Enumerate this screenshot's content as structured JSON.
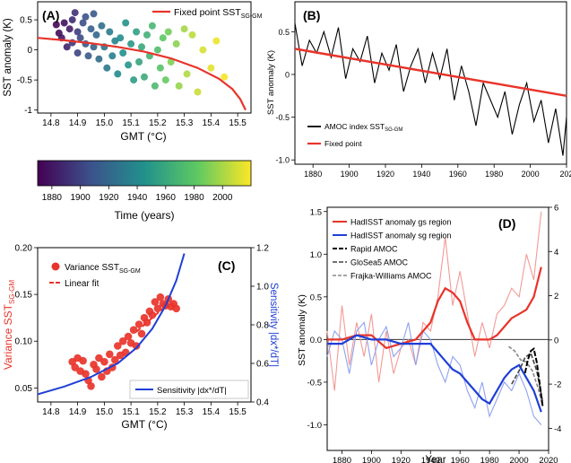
{
  "panels": {
    "A": {
      "letter": "(A)",
      "xlabel": "GMT (°C)",
      "ylabel": "SST anomaly (K)",
      "xticks": [
        "14.8",
        "14.9",
        "15.0",
        "15.1",
        "15.2",
        "15.3",
        "15.4",
        "15.5"
      ],
      "yticks": [
        "0.5",
        "0",
        "-0.5",
        "-1"
      ],
      "legend": "Fixed point SST",
      "legend_sub": "SG-GM"
    },
    "B": {
      "letter": "(B)",
      "ylabel": "SST anomaly (K)",
      "xticks": [
        "1880",
        "1900",
        "1920",
        "1940",
        "1960",
        "1980",
        "2000",
        "202"
      ],
      "yticks": [
        "0.5",
        "0",
        "-0.5",
        "-1.0"
      ],
      "legend_series": "AMOC index SST",
      "legend_series_sub": "SG-GM",
      "legend_fit": "Fixed point"
    },
    "colorbar": {
      "label": "Time (years)",
      "ticks": [
        "1880",
        "1900",
        "1920",
        "1940",
        "1960",
        "1980",
        "2000"
      ]
    },
    "C": {
      "letter": "(C)",
      "xlabel": "GMT (°C)",
      "ylabel_left": "Variance SST",
      "ylabel_left_sub": "SG-GM",
      "ylabel_right": "Sensitivity |dx*/dT|",
      "xticks": [
        "14.8",
        "14.9",
        "15.0",
        "15.1",
        "15.2",
        "15.3",
        "15.4",
        "15.5"
      ],
      "yticks_left": [
        "0.05",
        "0.10",
        "0.15",
        "0.20"
      ],
      "yticks_right": [
        "0.4",
        "0.6",
        "0.8",
        "1.0",
        "1.2"
      ],
      "legend_scatter": "Variance SST",
      "legend_scatter_sub": "SG-GM",
      "legend_fit": "Linear fit",
      "legend_sens": "Sensitivity |dx*/dT|"
    },
    "D": {
      "letter": "(D)",
      "xlabel": "Year",
      "ylabel": "SST anomaly (K)",
      "xticks": [
        "1880",
        "1900",
        "1920",
        "1940",
        "1960",
        "1980",
        "2000",
        "2020"
      ],
      "yticks_left": [
        "1.5",
        "1.0",
        "0.5",
        "0.0",
        "-0.5",
        "-1.0"
      ],
      "yticks_right": [
        "6",
        "4",
        "2",
        "0",
        "-2",
        "-4"
      ],
      "legend": [
        "HadISST anomaly gs region",
        "HadISST anomaly sg region",
        "Rapid AMOC",
        "GloSea5 AMOC",
        "Frajka-Williams AMOC"
      ]
    }
  },
  "colors": {
    "red": "#e8342b",
    "light_red": "#f29a96",
    "blue": "#1f3fd6",
    "light_blue": "#8fa2f0",
    "black": "#000000",
    "colormap": [
      "#440154",
      "#3b528b",
      "#21918c",
      "#5ec962",
      "#fde725"
    ]
  },
  "chart_data": [
    {
      "type": "scatter",
      "panel": "A",
      "xlabel": "GMT (°C)",
      "ylabel": "SST anomaly (K)",
      "xlim": [
        14.75,
        15.55
      ],
      "ylim": [
        -1.05,
        0.8
      ],
      "scatter_color_by": "Time (years)",
      "points": [
        [
          14.82,
          0.42,
          1872
        ],
        [
          14.83,
          0.28,
          1875
        ],
        [
          14.84,
          0.2,
          1880
        ],
        [
          14.85,
          0.45,
          1878
        ],
        [
          14.86,
          0.05,
          1886
        ],
        [
          14.87,
          0.35,
          1883
        ],
        [
          14.88,
          0.5,
          1890
        ],
        [
          14.88,
          0.12,
          1895
        ],
        [
          14.89,
          0.62,
          1892
        ],
        [
          14.9,
          0.3,
          1898
        ],
        [
          14.9,
          -0.05,
          1900
        ],
        [
          14.91,
          0.2,
          1904
        ],
        [
          14.92,
          0.45,
          1906
        ],
        [
          14.93,
          0.1,
          1910
        ],
        [
          14.93,
          0.55,
          1908
        ],
        [
          14.94,
          -0.1,
          1913
        ],
        [
          14.95,
          0.35,
          1915
        ],
        [
          14.96,
          0.05,
          1918
        ],
        [
          14.96,
          0.6,
          1912
        ],
        [
          14.97,
          0.25,
          1920
        ],
        [
          14.98,
          -0.15,
          1923
        ],
        [
          14.99,
          0.4,
          1925
        ],
        [
          15.0,
          0.05,
          1927
        ],
        [
          15.01,
          -0.3,
          1930
        ],
        [
          15.02,
          0.3,
          1932
        ],
        [
          15.03,
          -0.1,
          1935
        ],
        [
          15.04,
          0.15,
          1937
        ],
        [
          15.05,
          -0.4,
          1940
        ],
        [
          15.06,
          0.2,
          1942
        ],
        [
          15.07,
          -0.05,
          1944
        ],
        [
          15.08,
          0.45,
          1946
        ],
        [
          15.09,
          -0.25,
          1948
        ],
        [
          15.1,
          0.1,
          1950
        ],
        [
          15.11,
          -0.5,
          1953
        ],
        [
          15.12,
          0.3,
          1955
        ],
        [
          15.13,
          -0.2,
          1957
        ],
        [
          15.14,
          0.05,
          1960
        ],
        [
          15.15,
          -0.45,
          1962
        ],
        [
          15.16,
          0.25,
          1965
        ],
        [
          15.17,
          -0.1,
          1967
        ],
        [
          15.18,
          0.4,
          1970
        ],
        [
          15.19,
          -0.6,
          1972
        ],
        [
          15.2,
          0.0,
          1975
        ],
        [
          15.21,
          -0.3,
          1978
        ],
        [
          15.22,
          0.2,
          1981
        ],
        [
          15.23,
          -0.5,
          1984
        ],
        [
          15.24,
          0.3,
          1987
        ],
        [
          15.25,
          -0.2,
          1990
        ],
        [
          15.27,
          0.1,
          1993
        ],
        [
          15.28,
          -0.6,
          1996
        ],
        [
          15.3,
          0.35,
          1999
        ],
        [
          15.31,
          -0.4,
          2002
        ],
        [
          15.33,
          0.25,
          2005
        ],
        [
          15.35,
          -0.7,
          2008
        ],
        [
          15.37,
          0.0,
          2011
        ],
        [
          15.4,
          -0.3,
          2014
        ],
        [
          15.42,
          0.15,
          2016
        ],
        [
          15.45,
          -0.45,
          2018
        ]
      ],
      "series": [
        {
          "name": "Fixed point SST SG-GM",
          "x": [
            14.75,
            14.85,
            14.95,
            15.05,
            15.15,
            15.25,
            15.35,
            15.43,
            15.48,
            15.51,
            15.53
          ],
          "y": [
            0.2,
            0.16,
            0.11,
            0.05,
            -0.03,
            -0.14,
            -0.3,
            -0.48,
            -0.65,
            -0.82,
            -1.0
          ]
        }
      ]
    },
    {
      "type": "line",
      "panel": "B",
      "ylabel": "SST anomaly (K)",
      "xlim": [
        1870,
        2020
      ],
      "ylim": [
        -1.05,
        0.85
      ],
      "series": [
        {
          "name": "AMOC index SST SG-GM",
          "x": [
            1870,
            1874,
            1878,
            1882,
            1886,
            1890,
            1894,
            1898,
            1902,
            1906,
            1910,
            1914,
            1918,
            1922,
            1926,
            1930,
            1934,
            1938,
            1942,
            1946,
            1950,
            1954,
            1958,
            1962,
            1966,
            1970,
            1974,
            1978,
            1982,
            1986,
            1990,
            1994,
            1998,
            2002,
            2006,
            2010,
            2014,
            2018,
            2020
          ],
          "y": [
            0.6,
            0.1,
            0.4,
            0.25,
            0.5,
            0.2,
            0.55,
            -0.05,
            0.3,
            0.15,
            0.45,
            -0.1,
            0.25,
            0.05,
            0.35,
            -0.2,
            0.1,
            0.3,
            -0.1,
            0.25,
            -0.05,
            0.3,
            -0.3,
            0.1,
            -0.2,
            -0.6,
            -0.1,
            -0.3,
            -0.5,
            -0.2,
            -0.7,
            -0.35,
            -0.1,
            -0.55,
            -0.3,
            -0.8,
            -0.4,
            -0.95,
            -0.5
          ]
        },
        {
          "name": "Fixed point",
          "x": [
            1870,
            2020
          ],
          "y": [
            0.3,
            -0.25
          ]
        }
      ]
    },
    {
      "type": "scatter",
      "panel": "C",
      "xlabel": "GMT (°C)",
      "ylabel": "Variance SST SG-GM",
      "xlim": [
        14.75,
        15.55
      ],
      "ylim": [
        0.035,
        0.2
      ],
      "y2lim": [
        0.4,
        1.2
      ],
      "points": [
        [
          14.88,
          0.078
        ],
        [
          14.89,
          0.072
        ],
        [
          14.9,
          0.082
        ],
        [
          14.91,
          0.068
        ],
        [
          14.92,
          0.079
        ],
        [
          14.93,
          0.065
        ],
        [
          14.94,
          0.058
        ],
        [
          14.95,
          0.052
        ],
        [
          14.96,
          0.075
        ],
        [
          14.97,
          0.07
        ],
        [
          14.98,
          0.082
        ],
        [
          14.99,
          0.062
        ],
        [
          15.0,
          0.078
        ],
        [
          15.01,
          0.068
        ],
        [
          15.02,
          0.086
        ],
        [
          15.03,
          0.072
        ],
        [
          15.04,
          0.08
        ],
        [
          15.05,
          0.095
        ],
        [
          15.06,
          0.085
        ],
        [
          15.07,
          0.1
        ],
        [
          15.08,
          0.088
        ],
        [
          15.09,
          0.105
        ],
        [
          15.1,
          0.098
        ],
        [
          15.11,
          0.112
        ],
        [
          15.12,
          0.095
        ],
        [
          15.13,
          0.118
        ],
        [
          15.14,
          0.108
        ],
        [
          15.15,
          0.125
        ],
        [
          15.16,
          0.12
        ],
        [
          15.17,
          0.132
        ],
        [
          15.18,
          0.128
        ],
        [
          15.19,
          0.142
        ],
        [
          15.2,
          0.135
        ],
        [
          15.21,
          0.147
        ],
        [
          15.22,
          0.14
        ],
        [
          15.23,
          0.138
        ],
        [
          15.24,
          0.145
        ],
        [
          15.25,
          0.137
        ],
        [
          15.26,
          0.14
        ],
        [
          15.27,
          0.135
        ]
      ],
      "series": [
        {
          "name": "Linear fit",
          "x": [
            15.12,
            15.24
          ],
          "y": [
            0.11,
            0.14
          ]
        },
        {
          "name": "Sensitivity |dx*/dT|",
          "axis": "right",
          "x": [
            14.75,
            14.85,
            14.95,
            15.05,
            15.12,
            15.18,
            15.23,
            15.27,
            15.3
          ],
          "y": [
            0.44,
            0.48,
            0.53,
            0.6,
            0.68,
            0.78,
            0.9,
            1.03,
            1.17
          ]
        }
      ]
    },
    {
      "type": "line",
      "panel": "D",
      "xlabel": "Year",
      "ylabel": "SST anomaly (K)",
      "xlim": [
        1870,
        2020
      ],
      "ylim": [
        -1.3,
        1.55
      ],
      "y2lim": [
        -5.0,
        6.0
      ],
      "series": [
        {
          "name": "HadISST anomaly gs region raw",
          "x": [
            1870,
            1875,
            1880,
            1885,
            1890,
            1895,
            1900,
            1905,
            1910,
            1915,
            1920,
            1925,
            1930,
            1935,
            1940,
            1945,
            1950,
            1955,
            1960,
            1965,
            1970,
            1975,
            1980,
            1985,
            1990,
            1995,
            2000,
            2005,
            2010,
            2015
          ],
          "y": [
            0.1,
            -0.6,
            0.4,
            -0.3,
            0.2,
            -0.2,
            0.3,
            -0.5,
            0.1,
            -0.4,
            -0.1,
            0.0,
            -0.3,
            0.2,
            0.1,
            0.5,
            1.2,
            0.4,
            0.8,
            0.3,
            -0.2,
            0.2,
            -0.1,
            0.3,
            0.4,
            0.6,
            0.5,
            1.0,
            0.7,
            1.5
          ]
        },
        {
          "name": "HadISST anomaly gs region",
          "x": [
            1870,
            1880,
            1890,
            1900,
            1910,
            1920,
            1930,
            1940,
            1945,
            1950,
            1955,
            1960,
            1965,
            1970,
            1975,
            1980,
            1985,
            1990,
            1995,
            2000,
            2005,
            2010,
            2015
          ],
          "y": [
            0.0,
            0.0,
            0.05,
            0.05,
            -0.1,
            -0.05,
            0.0,
            0.2,
            0.45,
            0.6,
            0.55,
            0.45,
            0.2,
            0.0,
            0.0,
            0.0,
            0.05,
            0.15,
            0.25,
            0.3,
            0.35,
            0.5,
            0.85
          ]
        },
        {
          "name": "HadISST anomaly sg region raw",
          "x": [
            1870,
            1875,
            1880,
            1885,
            1890,
            1895,
            1900,
            1905,
            1910,
            1915,
            1920,
            1925,
            1930,
            1935,
            1940,
            1945,
            1950,
            1955,
            1960,
            1965,
            1970,
            1975,
            1980,
            1985,
            1990,
            1995,
            2000,
            2005,
            2010,
            2015
          ],
          "y": [
            -0.2,
            0.1,
            0.0,
            -0.4,
            0.1,
            0.2,
            -0.3,
            0.0,
            0.15,
            -0.2,
            -0.1,
            0.2,
            -0.3,
            0.1,
            0.0,
            -0.3,
            -0.5,
            -0.2,
            -0.3,
            -0.6,
            -0.8,
            -0.5,
            -0.9,
            -0.7,
            -0.5,
            -0.6,
            -0.4,
            -0.6,
            -0.9,
            -1.0
          ]
        },
        {
          "name": "HadISST anomaly sg region",
          "x": [
            1870,
            1880,
            1890,
            1900,
            1910,
            1920,
            1930,
            1940,
            1950,
            1955,
            1960,
            1965,
            1970,
            1975,
            1980,
            1985,
            1990,
            1995,
            2000,
            2005,
            2010,
            2015
          ],
          "y": [
            -0.05,
            -0.05,
            0.05,
            0.0,
            0.0,
            -0.05,
            -0.05,
            -0.05,
            -0.25,
            -0.35,
            -0.4,
            -0.5,
            -0.6,
            -0.7,
            -0.75,
            -0.6,
            -0.45,
            -0.35,
            -0.3,
            -0.45,
            -0.6,
            -0.85
          ]
        },
        {
          "name": "Rapid AMOC",
          "axis": "right",
          "x": [
            2004,
            2006,
            2008,
            2010,
            2012,
            2014,
            2016
          ],
          "y": [
            -1.5,
            -0.9,
            -0.5,
            -0.4,
            -1.0,
            -2.0,
            -3.0
          ]
        },
        {
          "name": "GloSea5 AMOC",
          "axis": "right",
          "x": [
            1995,
            2000,
            2004,
            2008,
            2012,
            2016
          ],
          "y": [
            -2.0,
            -1.4,
            -0.8,
            -0.6,
            -1.4,
            -2.8
          ]
        },
        {
          "name": "Frajka-Williams AMOC",
          "axis": "right",
          "x": [
            1993,
            1997,
            2001,
            2005,
            2009,
            2013,
            2016
          ],
          "y": [
            -0.3,
            -0.5,
            -0.9,
            -1.0,
            -1.4,
            -2.2,
            -3.0
          ]
        }
      ]
    }
  ]
}
